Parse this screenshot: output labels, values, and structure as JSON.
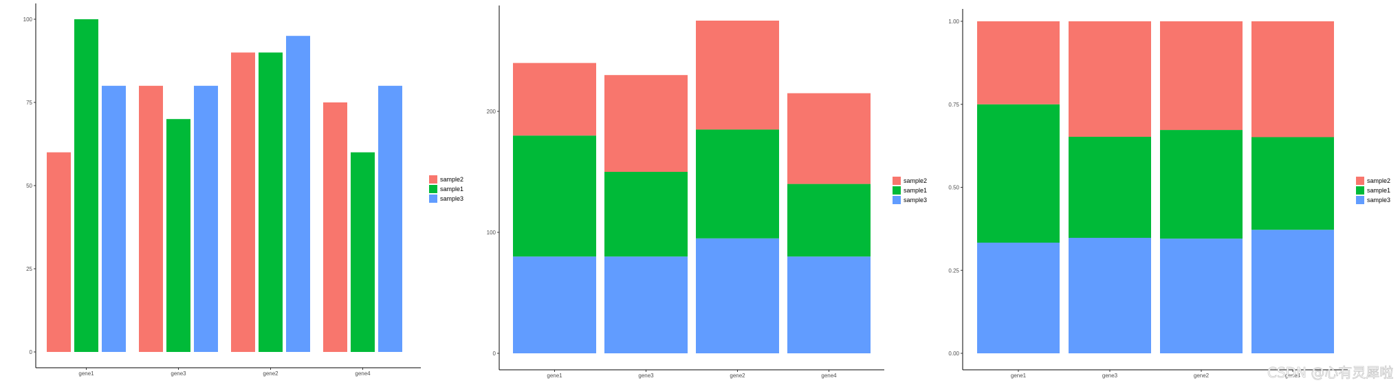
{
  "chart_data": [
    {
      "type": "bar",
      "mode": "grouped",
      "categories": [
        "gene1",
        "gene3",
        "gene2",
        "gene4"
      ],
      "series": [
        {
          "name": "sample2",
          "color": "#F8766D",
          "values": [
            60,
            80,
            90,
            75
          ]
        },
        {
          "name": "sample1",
          "color": "#00BA38",
          "values": [
            100,
            70,
            90,
            60
          ]
        },
        {
          "name": "sample3",
          "color": "#619CFF",
          "values": [
            80,
            80,
            95,
            80
          ]
        }
      ],
      "yticks": [
        "0",
        "25",
        "50",
        "75",
        "100"
      ],
      "ylim": [
        0,
        100
      ],
      "title": "",
      "xlabel": "",
      "ylabel": "",
      "grid": false,
      "legend_position": "right"
    },
    {
      "type": "bar",
      "mode": "stacked",
      "categories": [
        "gene1",
        "gene3",
        "gene2",
        "gene4"
      ],
      "series": [
        {
          "name": "sample2",
          "color": "#F8766D",
          "values": [
            60,
            80,
            90,
            75
          ]
        },
        {
          "name": "sample1",
          "color": "#00BA38",
          "values": [
            100,
            70,
            90,
            60
          ]
        },
        {
          "name": "sample3",
          "color": "#619CFF",
          "values": [
            80,
            80,
            95,
            80
          ]
        }
      ],
      "yticks": [
        "0",
        "100",
        "200"
      ],
      "ylim": [
        0,
        275
      ],
      "title": "",
      "xlabel": "",
      "ylabel": "",
      "grid": false,
      "legend_position": "right"
    },
    {
      "type": "bar",
      "mode": "percent",
      "categories": [
        "gene1",
        "gene3",
        "gene2",
        "gene4"
      ],
      "series": [
        {
          "name": "sample2",
          "color": "#F8766D",
          "values": [
            60,
            80,
            90,
            75
          ]
        },
        {
          "name": "sample1",
          "color": "#00BA38",
          "values": [
            100,
            70,
            90,
            60
          ]
        },
        {
          "name": "sample3",
          "color": "#619CFF",
          "values": [
            80,
            80,
            95,
            80
          ]
        }
      ],
      "yticks": [
        "0.00",
        "0.25",
        "0.50",
        "0.75",
        "1.00"
      ],
      "ylim": [
        0,
        1
      ],
      "title": "",
      "xlabel": "",
      "ylabel": "",
      "grid": false,
      "legend_position": "right"
    }
  ],
  "watermark": "CSDN @心有灵犀啦"
}
